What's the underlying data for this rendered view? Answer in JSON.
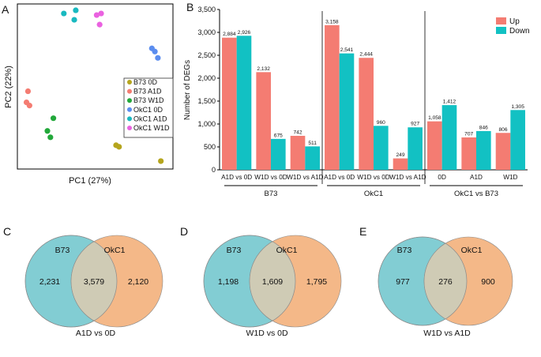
{
  "colors": {
    "up": "#f47c72",
    "down": "#12c1c3",
    "venn_b73": "#82cdd3",
    "venn_okc1": "#f4b888",
    "venn_overlap": "#cfcbb5",
    "axis": "#000000",
    "legend_border": "#333333"
  },
  "panel_a": {
    "letter": "A",
    "xlabel": "PC1 (27%)",
    "ylabel": "PC2 (22%)",
    "chart_data": {
      "type": "scatter",
      "title": "",
      "xlabel": "PC1 (27%)",
      "ylabel": "PC2 (22%)",
      "xlim": [
        0,
        100
      ],
      "ylim": [
        0,
        100
      ],
      "legend": "right",
      "series": [
        {
          "name": "B73 0D",
          "color": "#b5a51d",
          "points": [
            [
              64,
              13
            ],
            [
              66,
              12
            ],
            [
              94,
              3
            ]
          ]
        },
        {
          "name": "B73 A1D",
          "color": "#f47c72",
          "points": [
            [
              5,
              47
            ],
            [
              4,
              40
            ],
            [
              6,
              38
            ]
          ]
        },
        {
          "name": "B73 W1D",
          "color": "#22a83a",
          "points": [
            [
              22,
              30
            ],
            [
              18,
              22
            ],
            [
              20,
              18
            ]
          ]
        },
        {
          "name": "OkC1 0D",
          "color": "#5b8def",
          "points": [
            [
              88,
              74
            ],
            [
              90,
              72
            ],
            [
              92,
              68
            ]
          ]
        },
        {
          "name": "OkC1 A1D",
          "color": "#19b9c0",
          "points": [
            [
              29,
              96
            ],
            [
              37,
              98
            ],
            [
              36,
              92
            ]
          ]
        },
        {
          "name": "OkC1 W1D",
          "color": "#ea62e0",
          "points": [
            [
              51,
              95
            ],
            [
              54,
              96
            ],
            [
              53,
              89
            ]
          ]
        }
      ]
    }
  },
  "panel_b": {
    "letter": "B",
    "ylabel": "Number of DEGs",
    "legend": [
      {
        "label": "Up",
        "key": "up"
      },
      {
        "label": "Down",
        "key": "down"
      }
    ],
    "chart_data": {
      "type": "bar",
      "title": "",
      "xlabel": "",
      "ylabel": "Number of DEGs",
      "ylim": [
        0,
        3500
      ],
      "yticks": [
        "0",
        "500",
        "1,000",
        "1,500",
        "2,000",
        "2,500",
        "3,000",
        "3,500"
      ],
      "ytick_values": [
        0,
        500,
        1000,
        1500,
        2000,
        2500,
        3000,
        3500
      ],
      "legend": "top-right",
      "categories": [
        "A1D vs 0D",
        "W1D vs 0D",
        "W1D vs A1D",
        "A1D vs 0D",
        "W1D vs 0D",
        "W1D vs A1D",
        "0D",
        "A1D",
        "W1D"
      ],
      "series": [
        {
          "name": "Up",
          "values": [
            2884,
            2132,
            742,
            3158,
            2444,
            249,
            1058,
            707,
            806
          ],
          "labels": [
            "2,884",
            "2,132",
            "742",
            "3,158",
            "2,444",
            "249",
            "1,058",
            "707",
            "806"
          ]
        },
        {
          "name": "Down",
          "values": [
            2926,
            675,
            511,
            2541,
            960,
            927,
            1412,
            846,
            1305
          ],
          "labels": [
            "2,926",
            "675",
            "511",
            "2,541",
            "960",
            "927",
            "1,412",
            "846",
            "1,305"
          ]
        }
      ],
      "groups": [
        {
          "label": "B73",
          "categories": [
            0,
            1,
            2
          ]
        },
        {
          "label": "OkC1",
          "categories": [
            3,
            4,
            5
          ]
        },
        {
          "label": "OkC1 vs B73",
          "categories": [
            6,
            7,
            8
          ]
        }
      ]
    }
  },
  "venns": [
    {
      "letter": "C",
      "left_label": "B73",
      "right_label": "OkC1",
      "left_only": "2,231",
      "overlap": "3,579",
      "right_only": "2,120",
      "caption": "A1D vs 0D"
    },
    {
      "letter": "D",
      "left_label": "B73",
      "right_label": "OkC1",
      "left_only": "1,198",
      "overlap": "1,609",
      "right_only": "1,795",
      "caption": "W1D vs 0D"
    },
    {
      "letter": "E",
      "left_label": "B73",
      "right_label": "OkC1",
      "left_only": "977",
      "overlap": "276",
      "right_only": "900",
      "caption": "W1D vs A1D"
    }
  ]
}
